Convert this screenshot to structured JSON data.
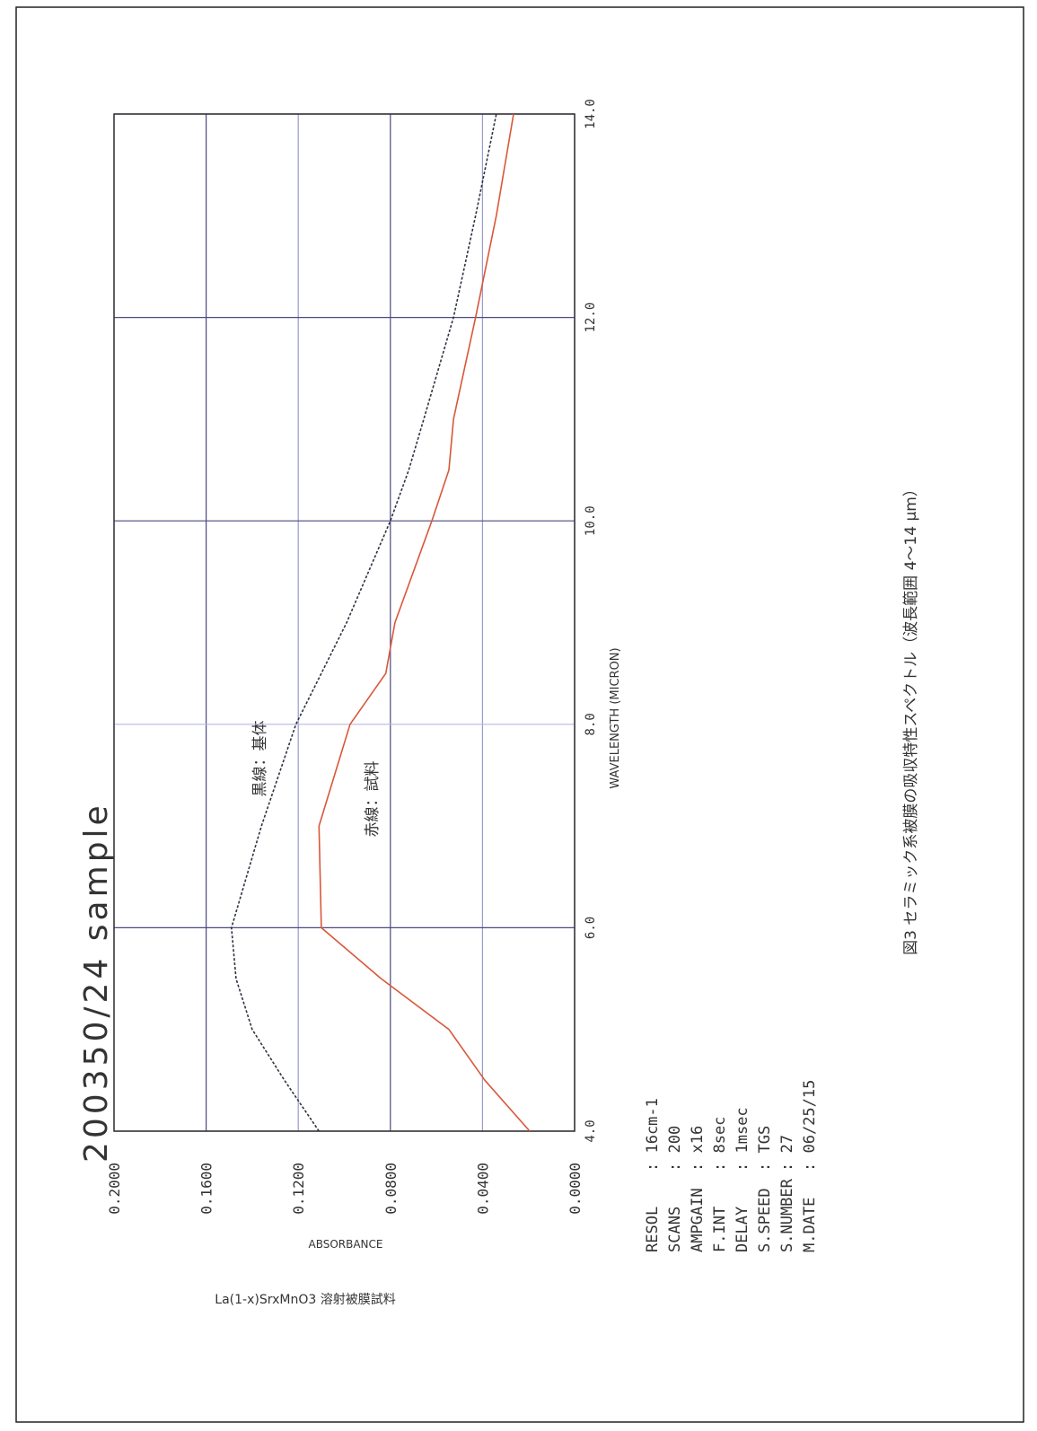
{
  "chart_data": {
    "type": "line",
    "title": "200350/24 sample",
    "x_label": "WAVELENGTH (MICRON)",
    "y_label": "ABSORBANCE",
    "x": [
      4,
      4.5,
      5,
      5.5,
      6,
      7,
      8,
      8.5,
      9,
      10,
      10.5,
      11,
      12,
      13,
      14
    ],
    "series": [
      {
        "name": "黒線：基体",
        "color": "#2e3440",
        "values": [
          0.111,
          0.126,
          0.14,
          0.147,
          0.149,
          0.136,
          0.121,
          0.11,
          0.099,
          0.08,
          0.072,
          0.0655,
          0.0526,
          0.043,
          0.034
        ]
      },
      {
        "name": "赤線：試料",
        "color": "#d9573a",
        "values": [
          0.0195,
          0.039,
          0.0546,
          0.084,
          0.11,
          0.111,
          0.0975,
          0.082,
          0.078,
          0.062,
          0.0546,
          0.0526,
          0.043,
          0.034,
          0.0265
        ]
      }
    ],
    "xlim": [
      4,
      14
    ],
    "xticks": [
      {
        "value": 4,
        "label": "4.0"
      },
      {
        "value": 6,
        "label": "6.0"
      },
      {
        "value": 8,
        "label": "8.0"
      },
      {
        "value": 10,
        "label": "10.0"
      },
      {
        "value": 12,
        "label": "12.0"
      },
      {
        "value": 14,
        "label": "14.0"
      }
    ],
    "ylim": [
      0,
      0.2
    ],
    "yticks": [
      {
        "value": 0,
        "label": "0.0000"
      },
      {
        "value": 0.04,
        "label": "0.0400"
      },
      {
        "value": 0.08,
        "label": "0.0800"
      },
      {
        "value": 0.12,
        "label": "0.1200"
      },
      {
        "value": 0.16,
        "label": "0.1600"
      },
      {
        "value": 0.2,
        "label": "0.2000"
      }
    ],
    "grid": true,
    "sample_caption": "La(1-x)SrxMnO3 溶射被膜試料",
    "figure_caption": "図3 セラミック系被膜の吸収特性スペクトル（波長範囲 4～14 μm）",
    "info": [
      {
        "label": "RESOL",
        "value": ": 16cm-1"
      },
      {
        "label": "SCANS",
        "value": ": 200"
      },
      {
        "label": "AMPGAIN",
        "value": ": x16"
      },
      {
        "label": "F.INT",
        "value": ": 8sec"
      },
      {
        "label": "DELAY",
        "value": ": 1msec"
      },
      {
        "label": "S.SPEED",
        "value": ": TGS"
      },
      {
        "label": "S.NUMBER",
        "value": ": 27"
      },
      {
        "label": "M.DATE",
        "value": ": 06/25/15"
      }
    ]
  }
}
